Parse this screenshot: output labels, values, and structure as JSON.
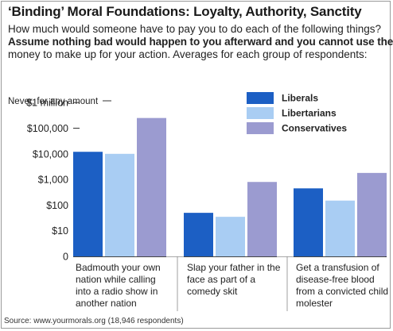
{
  "header": {
    "title": "‘Binding’ Moral Foundations: Loyalty, Authority, Sanctity",
    "question_line1": "How much would someone have to pay you to do each of the following things?",
    "question_line2": "Assume nothing bad would happen to you afterward and you cannot use the",
    "question_line3": "money to make up for your action.  Averages for each group of respondents:"
  },
  "source": "Source: www.yourmorals.org (18,946 respondents)",
  "chart_data": {
    "type": "bar",
    "y_scale": "log",
    "categories": [
      "Badmouth your own nation while calling into a radio show in another nation",
      "Slap your father in the face as part of a comedy skit",
      "Get a transfusion of disease-free blood from a convicted child molester"
    ],
    "category_lines": [
      [
        "Badmouth your own",
        "nation while calling",
        "into a radio show in",
        "another nation"
      ],
      [
        "Slap your father in the",
        "face as part of a",
        "comedy skit"
      ],
      [
        "Get a transfusion of",
        "disease-free blood",
        "from a convicted child",
        "molester"
      ]
    ],
    "series": [
      {
        "name": "Liberals",
        "color": "#1c5fc4",
        "values": [
          12000,
          50,
          450
        ]
      },
      {
        "name": "Libertarians",
        "color": "#a9cdf3",
        "values": [
          10000,
          35,
          150
        ]
      },
      {
        "name": "Conservatives",
        "color": "#9b9bd0",
        "values": [
          250000,
          800,
          1800
        ]
      }
    ],
    "y_ticks": [
      "0",
      "$10",
      "$100",
      "$1,000",
      "$10,000",
      "$100,000",
      "$1 million",
      "Never, for any amount"
    ],
    "legend_position": "top-right",
    "grid": false
  }
}
